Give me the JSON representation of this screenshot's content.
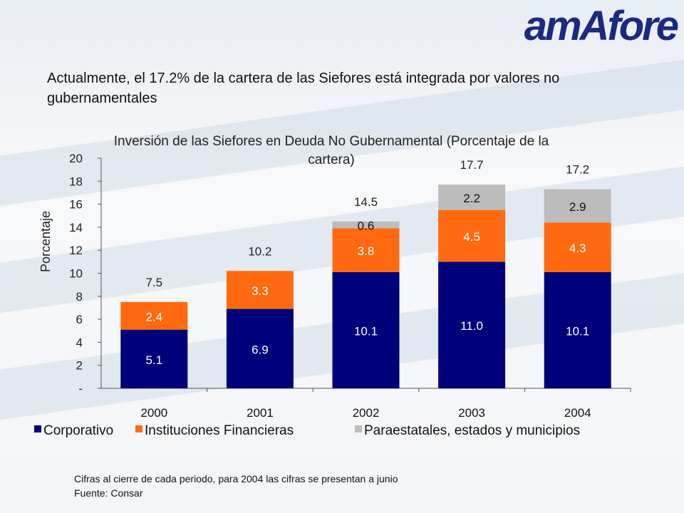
{
  "header": {
    "logo_text": "amAfore",
    "headline": "Actualmente, el 17.2% de la cartera de las Siefores está integrada por valores no gubernamentales"
  },
  "chart_data": {
    "type": "bar",
    "stacked": true,
    "title": "Inversión de las Siefores en Deuda No Gubernamental (Porcentaje de la cartera)",
    "xlabel": "",
    "ylabel": "Porcentaje",
    "ylim": [
      0,
      20
    ],
    "yticks": [
      "-",
      "2",
      "4",
      "6",
      "8",
      "10",
      "12",
      "14",
      "16",
      "18",
      "20"
    ],
    "categories": [
      "2000",
      "2001",
      "2002",
      "2003",
      "2004"
    ],
    "series": [
      {
        "name": "Corporativo",
        "color": "#00007a",
        "values": [
          5.1,
          6.9,
          10.1,
          11.0,
          10.1
        ]
      },
      {
        "name": "Instituciones Financieras",
        "color": "#ff6a10",
        "values": [
          2.4,
          3.3,
          3.8,
          4.5,
          4.3
        ]
      },
      {
        "name": "Paraestatales, estados y municipios",
        "color": "#bcbcbc",
        "values": [
          0,
          0,
          0.6,
          2.2,
          2.9
        ]
      }
    ],
    "segment_labels": [
      [
        "5.1",
        "6.9",
        "10.1",
        "11.0",
        "10.1"
      ],
      [
        "2.4",
        "3.3",
        "3.8",
        "4.5",
        "4.3"
      ],
      [
        "",
        "",
        "0.6",
        "2.2",
        "2.9"
      ]
    ],
    "totals": [
      "7.5",
      "10.2",
      "14.5",
      "17.7",
      "17.2"
    ],
    "legend_position": "bottom",
    "grid": false
  },
  "footer": {
    "note": "Cifras al cierre de cada periodo, para 2004 las cifras se presentan a junio",
    "source": "Fuente: Consar"
  }
}
